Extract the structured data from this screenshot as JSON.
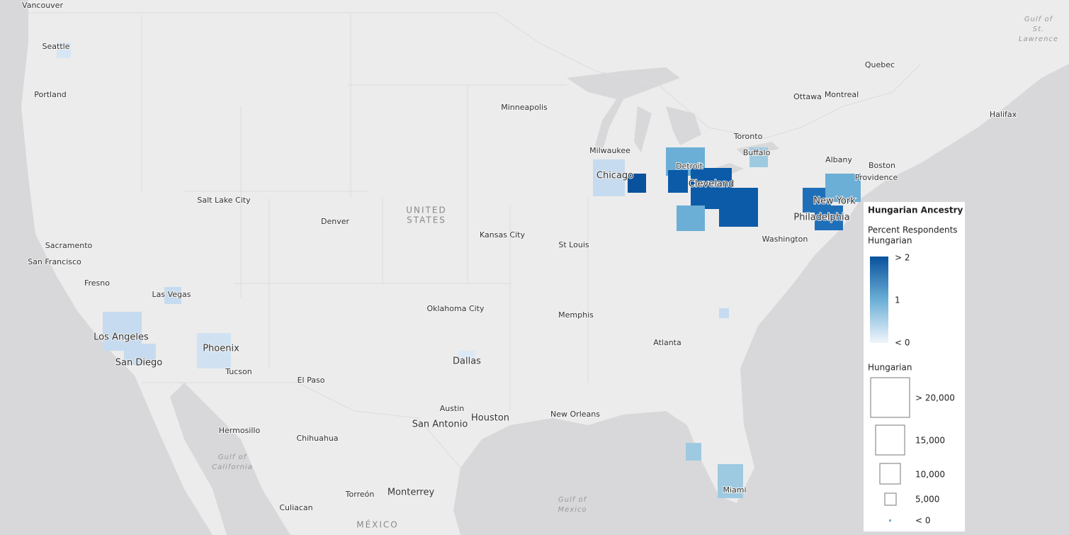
{
  "map": {
    "places": [
      "Vancouver",
      "Seattle",
      "Portland",
      "Quebec",
      "Ottawa",
      "Montreal",
      "Halifax",
      "Minneapolis",
      "Toronto",
      "Milwaukee",
      "Buffalo",
      "Albany",
      "Boston",
      "Providence",
      "Detroit",
      "Chicago",
      "Cleveland",
      "Salt Lake City",
      "New York",
      "Denver",
      "Philadelphia",
      "Kansas City",
      "Washington",
      "St Louis",
      "Sacramento",
      "San Francisco",
      "Fresno",
      "Las Vegas",
      "Oklahoma City",
      "Memphis",
      "Los Angeles",
      "Atlanta",
      "Phoenix",
      "Dallas",
      "San Diego",
      "Tucson",
      "El Paso",
      "Austin",
      "Houston",
      "New Orleans",
      "San Antonio",
      "Hermosillo",
      "Chihuahua",
      "Miami",
      "Monterrey",
      "Torreón",
      "Culiacan"
    ],
    "countries": [
      [
        "UNITED",
        "STATES"
      ],
      [
        "MÉXICO"
      ]
    ],
    "water": [
      [
        "Gulf of",
        "St.",
        "Lawrence"
      ],
      [
        "Gulf of",
        "California"
      ],
      [
        "Gulf of",
        "Mexico"
      ]
    ]
  },
  "legend": {
    "title": "Hungarian Ancestry",
    "color_title": [
      "Percent Respondents",
      "Hungarian"
    ],
    "color_labels": [
      "> 2",
      "1",
      "< 0"
    ],
    "size_title": "Hungarian",
    "size_labels": [
      "> 20,000",
      "15,000",
      "10,000",
      "5,000",
      "< 0"
    ]
  }
}
